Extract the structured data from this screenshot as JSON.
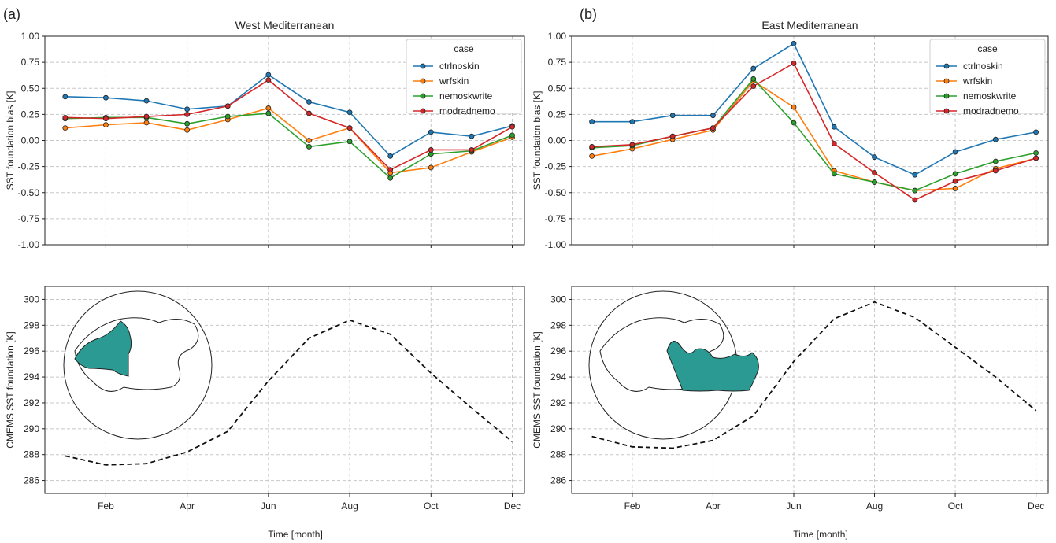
{
  "figure": {
    "xlabel_shared": "Time [month]"
  },
  "chart_data": [
    {
      "id": "top-left",
      "type": "line",
      "panel_label": "(a)",
      "title": "West Mediterranean",
      "ylabel": "SST foundation bias [K]",
      "xlabel": "",
      "x": [
        1,
        2,
        3,
        4,
        5,
        6,
        7,
        8,
        9,
        10,
        11,
        12
      ],
      "xlim": [
        0.5,
        12.3
      ],
      "ylim": [
        -1.0,
        1.0
      ],
      "yticks": [
        -1.0,
        -0.75,
        -0.5,
        -0.25,
        0.0,
        0.25,
        0.5,
        0.75,
        1.0
      ],
      "ytick_labels": [
        "-1.00",
        "-0.75",
        "-0.50",
        "-0.25",
        "0.00",
        "0.25",
        "0.50",
        "0.75",
        "1.00"
      ],
      "xticks": [
        2,
        4,
        6,
        8,
        10,
        12
      ],
      "xtick_labels": [
        "",
        "",
        "",
        "",
        "",
        ""
      ],
      "grid": true,
      "legend": {
        "title": "case",
        "placement": "top-right"
      },
      "series": [
        {
          "name": "ctrlnoskin",
          "color": "#1f77b4",
          "values": [
            0.42,
            0.41,
            0.38,
            0.3,
            0.33,
            0.63,
            0.37,
            0.27,
            -0.15,
            0.08,
            0.04,
            0.14
          ]
        },
        {
          "name": "wrfskin",
          "color": "#ff7f0e",
          "values": [
            0.12,
            0.15,
            0.17,
            0.1,
            0.2,
            0.31,
            0.0,
            0.12,
            -0.31,
            -0.26,
            -0.11,
            0.03
          ]
        },
        {
          "name": "nemoskwrite",
          "color": "#2ca02c",
          "values": [
            0.21,
            0.22,
            0.22,
            0.16,
            0.23,
            0.26,
            -0.06,
            -0.01,
            -0.36,
            -0.13,
            -0.1,
            0.05
          ]
        },
        {
          "name": "modradnemo",
          "color": "#d62728",
          "values": [
            0.22,
            0.21,
            0.23,
            0.25,
            0.33,
            0.58,
            0.26,
            0.12,
            -0.28,
            -0.09,
            -0.09,
            0.13
          ]
        }
      ]
    },
    {
      "id": "top-right",
      "type": "line",
      "panel_label": "(b)",
      "title": "East Mediterranean",
      "ylabel": "SST foundation bias [K]",
      "xlabel": "",
      "x": [
        1,
        2,
        3,
        4,
        5,
        6,
        7,
        8,
        9,
        10,
        11,
        12
      ],
      "xlim": [
        0.5,
        12.3
      ],
      "ylim": [
        -1.0,
        1.0
      ],
      "yticks": [
        -1.0,
        -0.75,
        -0.5,
        -0.25,
        0.0,
        0.25,
        0.5,
        0.75,
        1.0
      ],
      "ytick_labels": [
        "-1.00",
        "-0.75",
        "-0.50",
        "-0.25",
        "0.00",
        "0.25",
        "0.50",
        "0.75",
        "1.00"
      ],
      "xticks": [
        2,
        4,
        6,
        8,
        10,
        12
      ],
      "xtick_labels": [
        "",
        "",
        "",
        "",
        "",
        ""
      ],
      "grid": true,
      "legend": {
        "title": "case",
        "placement": "top-right"
      },
      "series": [
        {
          "name": "ctrlnoskin",
          "color": "#1f77b4",
          "values": [
            0.18,
            0.18,
            0.24,
            0.24,
            0.69,
            0.93,
            0.13,
            -0.16,
            -0.33,
            -0.11,
            0.01,
            0.08
          ]
        },
        {
          "name": "wrfskin",
          "color": "#ff7f0e",
          "values": [
            -0.15,
            -0.08,
            0.01,
            0.1,
            0.57,
            0.32,
            -0.29,
            -0.4,
            -0.48,
            -0.46,
            -0.27,
            -0.17
          ]
        },
        {
          "name": "nemoskwrite",
          "color": "#2ca02c",
          "values": [
            -0.07,
            -0.05,
            0.04,
            0.12,
            0.59,
            0.17,
            -0.32,
            -0.4,
            -0.48,
            -0.32,
            -0.2,
            -0.12
          ]
        },
        {
          "name": "modradnemo",
          "color": "#d62728",
          "values": [
            -0.06,
            -0.04,
            0.04,
            0.12,
            0.52,
            0.74,
            -0.03,
            -0.31,
            -0.57,
            -0.39,
            -0.29,
            -0.17
          ]
        }
      ]
    },
    {
      "id": "bottom-left",
      "type": "line",
      "title": "",
      "ylabel": "CMEMS SST foundation [K]",
      "xlabel": "",
      "x": [
        1,
        2,
        3,
        4,
        5,
        6,
        7,
        8,
        9,
        10,
        11,
        12
      ],
      "xlim": [
        0.5,
        12.3
      ],
      "ylim": [
        285,
        301
      ],
      "yticks": [
        286,
        288,
        290,
        292,
        294,
        296,
        298,
        300
      ],
      "ytick_labels": [
        "286",
        "288",
        "290",
        "292",
        "294",
        "296",
        "298",
        "300"
      ],
      "xticks": [
        2,
        4,
        6,
        8,
        10,
        12
      ],
      "xtick_labels": [
        "Feb",
        "Apr",
        "Jun",
        "Aug",
        "Oct",
        "Dec"
      ],
      "grid": true,
      "series": [
        {
          "color": "#111111",
          "dashed": true,
          "values": [
            287.9,
            287.2,
            287.3,
            288.2,
            289.8,
            293.7,
            297.0,
            298.4,
            297.3,
            294.3,
            291.6,
            289.0
          ]
        }
      ],
      "inset": {
        "type": "globe-map",
        "region": "west"
      }
    },
    {
      "id": "bottom-right",
      "type": "line",
      "title": "",
      "ylabel": "CMEMS SST foundation [K]",
      "xlabel": "",
      "x": [
        1,
        2,
        3,
        4,
        5,
        6,
        7,
        8,
        9,
        10,
        11,
        12
      ],
      "xlim": [
        0.5,
        12.3
      ],
      "ylim": [
        285,
        301
      ],
      "yticks": [
        286,
        288,
        290,
        292,
        294,
        296,
        298,
        300
      ],
      "ytick_labels": [
        "286",
        "288",
        "290",
        "292",
        "294",
        "296",
        "298",
        "300"
      ],
      "xticks": [
        2,
        4,
        6,
        8,
        10,
        12
      ],
      "xtick_labels": [
        "Feb",
        "Apr",
        "Jun",
        "Aug",
        "Oct",
        "Dec"
      ],
      "grid": true,
      "series": [
        {
          "color": "#111111",
          "dashed": true,
          "values": [
            289.4,
            288.6,
            288.5,
            289.1,
            291.0,
            295.2,
            298.5,
            299.8,
            298.6,
            296.3,
            294.0,
            291.4
          ]
        }
      ],
      "inset": {
        "type": "globe-map",
        "region": "east"
      }
    }
  ]
}
